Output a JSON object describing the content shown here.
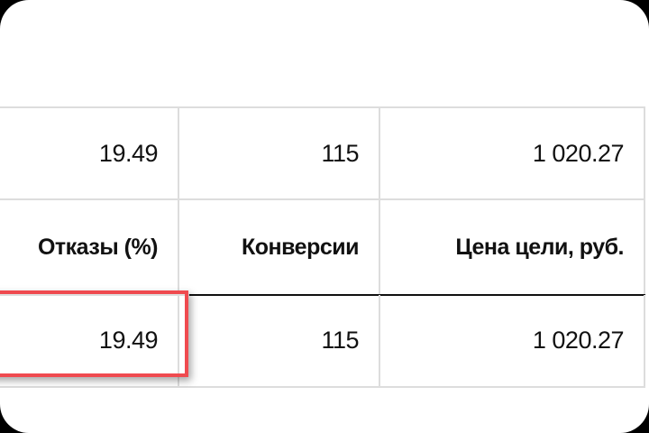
{
  "table": {
    "rows": [
      {
        "bounce": "19.49",
        "conversions": "115",
        "goal_cost": "1 020.27"
      }
    ],
    "headers": {
      "bounce": "Отказы (%)",
      "conversions": "Конверсии",
      "goal_cost": "Цена цели, руб."
    },
    "totals": {
      "bounce": "19.49",
      "conversions": "115",
      "goal_cost": "1 020.27"
    }
  },
  "highlight_color": "#ef4a4f"
}
